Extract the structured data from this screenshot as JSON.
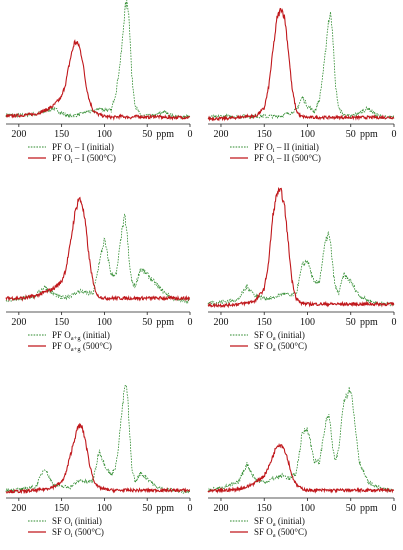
{
  "colors": {
    "initial": "#2e8b2e",
    "heated": "#c0181c",
    "axis": "#222222"
  },
  "chart_data": [
    {
      "type": "line",
      "x_ticks": [
        200,
        150,
        100,
        50,
        "ppm",
        0
      ],
      "xlim": [
        215,
        0
      ],
      "series": [
        {
          "name": "PF O",
          "sub": "i",
          "suffix": " – I (initial)",
          "style": "initial",
          "x": [
            215,
            195,
            180,
            170,
            160,
            150,
            140,
            128,
            120,
            113,
            106,
            100,
            92,
            86,
            80,
            76,
            73,
            71,
            68,
            64,
            58,
            50,
            40,
            30,
            20,
            12,
            5
          ],
          "y": [
            0.06,
            0.06,
            0.07,
            0.09,
            0.12,
            0.08,
            0.05,
            0.07,
            0.09,
            0.09,
            0.12,
            0.11,
            0.1,
            0.28,
            0.62,
            1.0,
            1.05,
            0.9,
            0.4,
            0.14,
            0.06,
            0.05,
            0.06,
            0.09,
            0.05,
            0.04,
            0.05
          ]
        },
        {
          "name": "PF O",
          "sub": "i",
          "suffix": " – I (500°C)",
          "style": "heated",
          "x": [
            215,
            195,
            180,
            170,
            160,
            150,
            145,
            140,
            135,
            130,
            126,
            122,
            118,
            113,
            108,
            100,
            90,
            80,
            70,
            60,
            50,
            40,
            30,
            20,
            10,
            5
          ],
          "y": [
            0.05,
            0.06,
            0.07,
            0.1,
            0.14,
            0.22,
            0.35,
            0.55,
            0.7,
            0.68,
            0.56,
            0.35,
            0.2,
            0.1,
            0.07,
            0.05,
            0.04,
            0.05,
            0.04,
            0.05,
            0.04,
            0.05,
            0.04,
            0.04,
            0.04,
            0.04
          ]
        }
      ]
    },
    {
      "type": "line",
      "x_ticks": [
        200,
        150,
        100,
        50,
        "ppm",
        0
      ],
      "xlim": [
        215,
        0
      ],
      "series": [
        {
          "name": "PF O",
          "sub": "i",
          "suffix": " – II (initial)",
          "style": "initial",
          "x": [
            215,
            195,
            180,
            170,
            160,
            150,
            140,
            128,
            120,
            113,
            106,
            100,
            92,
            86,
            80,
            76,
            73,
            71,
            68,
            64,
            58,
            50,
            40,
            30,
            20,
            12,
            5
          ],
          "y": [
            0.04,
            0.05,
            0.05,
            0.05,
            0.05,
            0.05,
            0.05,
            0.06,
            0.08,
            0.1,
            0.22,
            0.14,
            0.09,
            0.2,
            0.55,
            0.88,
            0.95,
            0.8,
            0.35,
            0.12,
            0.06,
            0.05,
            0.08,
            0.12,
            0.06,
            0.04,
            0.04
          ]
        },
        {
          "name": "PF O",
          "sub": "i",
          "suffix": " – II (500°C)",
          "style": "heated",
          "x": [
            215,
            195,
            180,
            170,
            160,
            150,
            145,
            140,
            135,
            130,
            126,
            122,
            118,
            113,
            108,
            100,
            90,
            80,
            70,
            60,
            50,
            40,
            30,
            20,
            10,
            5
          ],
          "y": [
            0.03,
            0.03,
            0.04,
            0.05,
            0.05,
            0.12,
            0.3,
            0.62,
            0.92,
            1.0,
            0.9,
            0.62,
            0.3,
            0.1,
            0.05,
            0.04,
            0.04,
            0.04,
            0.04,
            0.04,
            0.04,
            0.04,
            0.04,
            0.04,
            0.04,
            0.04
          ]
        }
      ]
    },
    {
      "type": "line",
      "x_ticks": [
        200,
        150,
        100,
        50,
        "ppm",
        0
      ],
      "xlim": [
        215,
        0
      ],
      "series": [
        {
          "name": "PF O",
          "sub": "a+g",
          "suffix": " (initial)",
          "style": "initial",
          "x": [
            215,
            195,
            180,
            170,
            160,
            150,
            140,
            128,
            120,
            113,
            106,
            100,
            92,
            86,
            80,
            76,
            73,
            71,
            68,
            64,
            58,
            50,
            40,
            30,
            20,
            12,
            5
          ],
          "y": [
            0.08,
            0.1,
            0.12,
            0.2,
            0.14,
            0.1,
            0.12,
            0.16,
            0.14,
            0.14,
            0.4,
            0.6,
            0.3,
            0.3,
            0.65,
            0.8,
            0.6,
            0.4,
            0.24,
            0.2,
            0.35,
            0.3,
            0.22,
            0.15,
            0.1,
            0.08,
            0.08
          ]
        },
        {
          "name": "PF O",
          "sub": "a+g",
          "suffix": " (500°C)",
          "style": "heated",
          "x": [
            215,
            195,
            180,
            170,
            160,
            150,
            145,
            140,
            135,
            130,
            126,
            122,
            118,
            113,
            108,
            100,
            90,
            80,
            70,
            60,
            50,
            40,
            30,
            20,
            10,
            5
          ],
          "y": [
            0.1,
            0.1,
            0.12,
            0.15,
            0.18,
            0.24,
            0.35,
            0.55,
            0.8,
            0.95,
            0.9,
            0.72,
            0.45,
            0.22,
            0.12,
            0.1,
            0.1,
            0.1,
            0.1,
            0.1,
            0.1,
            0.1,
            0.1,
            0.1,
            0.1,
            0.1
          ]
        }
      ]
    },
    {
      "type": "line",
      "x_ticks": [
        200,
        150,
        100,
        50,
        "ppm",
        0
      ],
      "xlim": [
        215,
        0
      ],
      "series": [
        {
          "name": "SF O",
          "sub": "a",
          "suffix": " (initial)",
          "style": "initial",
          "x": [
            215,
            195,
            180,
            170,
            160,
            150,
            140,
            128,
            120,
            113,
            106,
            100,
            92,
            86,
            80,
            76,
            73,
            71,
            68,
            64,
            58,
            50,
            40,
            30,
            20,
            12,
            5
          ],
          "y": [
            0.06,
            0.07,
            0.09,
            0.2,
            0.12,
            0.1,
            0.1,
            0.14,
            0.12,
            0.14,
            0.38,
            0.42,
            0.22,
            0.25,
            0.55,
            0.65,
            0.55,
            0.38,
            0.2,
            0.14,
            0.3,
            0.24,
            0.12,
            0.08,
            0.06,
            0.05,
            0.05
          ]
        },
        {
          "name": "SF O",
          "sub": "a",
          "suffix": " (500°C)",
          "style": "heated",
          "x": [
            215,
            195,
            180,
            170,
            160,
            150,
            145,
            140,
            135,
            130,
            126,
            122,
            118,
            113,
            108,
            100,
            90,
            80,
            70,
            60,
            50,
            40,
            30,
            20,
            10,
            5
          ],
          "y": [
            0.04,
            0.04,
            0.05,
            0.06,
            0.08,
            0.18,
            0.4,
            0.8,
            1.0,
            1.0,
            0.85,
            0.55,
            0.25,
            0.1,
            0.06,
            0.05,
            0.05,
            0.05,
            0.05,
            0.05,
            0.05,
            0.05,
            0.05,
            0.05,
            0.05,
            0.05
          ]
        }
      ]
    },
    {
      "type": "line",
      "x_ticks": [
        200,
        150,
        100,
        50,
        "ppm",
        0
      ],
      "xlim": [
        215,
        0
      ],
      "series": [
        {
          "name": "SF O",
          "sub": "i",
          "suffix": " (initial)",
          "style": "initial",
          "x": [
            215,
            195,
            180,
            170,
            160,
            150,
            140,
            128,
            120,
            113,
            106,
            100,
            92,
            86,
            80,
            76,
            73,
            71,
            68,
            64,
            58,
            50,
            40,
            30,
            20,
            12,
            5
          ],
          "y": [
            0.05,
            0.06,
            0.08,
            0.25,
            0.1,
            0.08,
            0.08,
            0.14,
            0.12,
            0.14,
            0.4,
            0.28,
            0.18,
            0.28,
            0.7,
            0.98,
            0.9,
            0.6,
            0.25,
            0.12,
            0.2,
            0.16,
            0.08,
            0.06,
            0.05,
            0.04,
            0.04
          ]
        },
        {
          "name": "SF O",
          "sub": "i",
          "suffix": " (500°C)",
          "style": "heated",
          "x": [
            215,
            195,
            180,
            170,
            160,
            150,
            145,
            140,
            135,
            130,
            126,
            122,
            118,
            113,
            108,
            100,
            90,
            80,
            70,
            60,
            50,
            40,
            30,
            20,
            10,
            5
          ],
          "y": [
            0.04,
            0.04,
            0.05,
            0.06,
            0.08,
            0.12,
            0.2,
            0.35,
            0.5,
            0.62,
            0.6,
            0.48,
            0.3,
            0.15,
            0.08,
            0.06,
            0.05,
            0.05,
            0.05,
            0.05,
            0.05,
            0.05,
            0.05,
            0.05,
            0.05,
            0.05
          ]
        }
      ]
    },
    {
      "type": "line",
      "x_ticks": [
        200,
        150,
        100,
        50,
        "ppm",
        0
      ],
      "xlim": [
        215,
        0
      ],
      "series": [
        {
          "name": "SF O",
          "sub": "a",
          "suffix": " (initial)",
          "style": "initial",
          "x": [
            215,
            195,
            180,
            170,
            160,
            150,
            140,
            128,
            120,
            113,
            106,
            100,
            92,
            86,
            80,
            76,
            73,
            71,
            68,
            64,
            58,
            50,
            40,
            30,
            20,
            12,
            5
          ],
          "y": [
            0.05,
            0.08,
            0.12,
            0.28,
            0.14,
            0.12,
            0.15,
            0.18,
            0.15,
            0.2,
            0.55,
            0.6,
            0.3,
            0.3,
            0.6,
            0.72,
            0.6,
            0.42,
            0.3,
            0.4,
            0.85,
            0.95,
            0.3,
            0.12,
            0.08,
            0.06,
            0.05
          ]
        },
        {
          "name": "SF O",
          "sub": "a",
          "suffix": " (500°C)",
          "style": "heated",
          "x": [
            215,
            195,
            180,
            170,
            160,
            150,
            145,
            140,
            135,
            130,
            126,
            122,
            118,
            113,
            108,
            100,
            90,
            80,
            70,
            60,
            50,
            40,
            30,
            20,
            10,
            5
          ],
          "y": [
            0.04,
            0.05,
            0.06,
            0.08,
            0.12,
            0.18,
            0.25,
            0.35,
            0.45,
            0.45,
            0.4,
            0.3,
            0.18,
            0.1,
            0.07,
            0.05,
            0.05,
            0.05,
            0.05,
            0.05,
            0.05,
            0.05,
            0.05,
            0.05,
            0.05,
            0.05
          ]
        }
      ]
    }
  ]
}
